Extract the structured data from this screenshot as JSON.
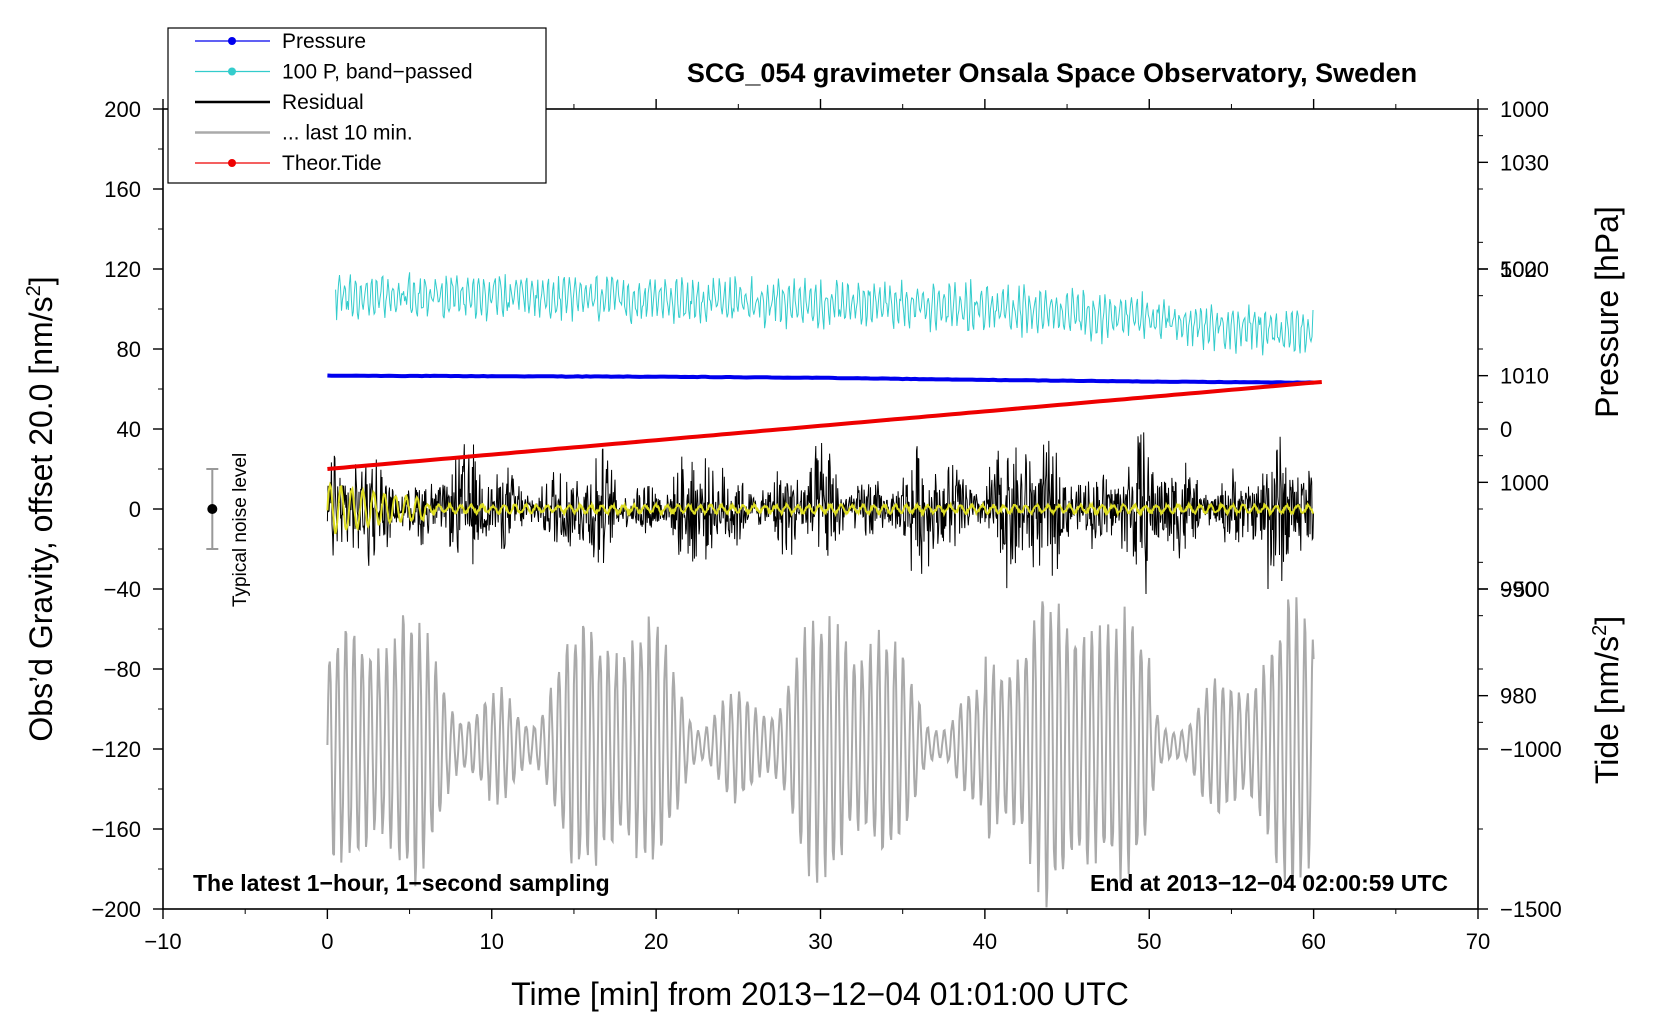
{
  "chart_data": {
    "type": "line",
    "title": "SCG_054 gravimeter Onsala Space Observatory, Sweden",
    "xlabel": "Time [min] from 2013−12−04 01:01:00 UTC",
    "ylabel_left": "Obs’d Gravity, offset 20.0 [nm/s",
    "ylabel_left_sup": "2",
    "ylabel_left_end": "]",
    "ylabel_right_top": "Pressure [hPa]",
    "ylabel_right_bottom": "Tide [nm/s",
    "ylabel_right_bottom_sup": "2",
    "ylabel_right_bottom_end": "]",
    "xlim": [
      -10,
      70
    ],
    "ylim": [
      -200,
      200
    ],
    "x_ticks": [
      -10,
      0,
      10,
      20,
      30,
      40,
      50,
      60,
      70
    ],
    "x_tick_labels": [
      "−10",
      "0",
      "10",
      "20",
      "30",
      "40",
      "50",
      "60",
      "70"
    ],
    "y_ticks": [
      200,
      160,
      120,
      80,
      40,
      0,
      -40,
      -80,
      -120,
      -160,
      -200
    ],
    "y_tick_labels": [
      "200",
      "160",
      "120",
      "80",
      "40",
      "0",
      "−40",
      "−80",
      "−120",
      "−160",
      "−200"
    ],
    "pressure_axis": {
      "range": [
        960,
        1035
      ],
      "ticks": [
        1030,
        1020,
        1010,
        1000,
        990,
        980
      ],
      "tick_labels": [
        "1030",
        "1020",
        "1010",
        "1000",
        "990",
        "980"
      ]
    },
    "tide_axis": {
      "range": [
        -1500,
        1000
      ],
      "ticks": [
        1000,
        500,
        0,
        -500,
        -1000,
        -1500
      ],
      "tick_labels": [
        "1000",
        "500",
        "0",
        "−500",
        "−1000",
        "−1500"
      ]
    },
    "annotations": {
      "bottom_left": "The latest 1−hour, 1−second sampling",
      "bottom_right": "End at 2013−12−04 02:00:59 UTC",
      "noise_label": "Typical noise level"
    },
    "noise_bar": {
      "x": -7,
      "center": 0,
      "low": -20,
      "high": 20
    },
    "legend": {
      "position": "top-left",
      "entries": [
        {
          "label": "Pressure",
          "color": "#0000ee",
          "marker": true
        },
        {
          "label": "100 P, band−passed",
          "color": "#33cccc",
          "marker": true
        },
        {
          "label": "Residual",
          "color": "#000000",
          "marker": false
        },
        {
          "label": "... last 10 min.",
          "color": "#aaaaaa",
          "marker": false
        },
        {
          "label": "Theor.Tide",
          "color": "#ee0000",
          "marker": true
        }
      ]
    },
    "series": [
      {
        "name": "Pressure",
        "color": "#0000ee",
        "axis": "pressure",
        "x": [
          0,
          10,
          20,
          30,
          40,
          50,
          60
        ],
        "values": [
          1010.0,
          1009.95,
          1009.9,
          1009.8,
          1009.6,
          1009.45,
          1009.35
        ]
      },
      {
        "name": "100 P, band−passed",
        "color": "#33cccc",
        "axis": "left",
        "x": [
          0,
          10,
          20,
          30,
          40,
          50,
          60
        ],
        "values": [
          107,
          106,
          105,
          103,
          101,
          95,
          88
        ]
      },
      {
        "name": "Residual",
        "color": "#000000",
        "axis": "left",
        "x": [
          0,
          10,
          20,
          30,
          40,
          50,
          60
        ],
        "values": [
          0,
          0,
          0,
          0,
          0,
          0,
          0
        ],
        "amplitude_max": 70
      },
      {
        "name": "... last 10 min.",
        "color": "#aaaaaa",
        "axis": "left",
        "x": [
          0,
          10,
          20,
          30,
          40,
          50,
          60
        ],
        "values": [
          -118,
          -118,
          -118,
          -118,
          -118,
          -118,
          -118
        ],
        "amplitude_max": 85
      },
      {
        "name": "Theor.Tide",
        "color": "#ee0000",
        "axis": "tide",
        "x": [
          0,
          60
        ],
        "values": [
          -125,
          145
        ]
      },
      {
        "name": "Filtered residual",
        "color": "#dddd22",
        "axis": "left",
        "x": [
          0,
          5,
          10,
          60
        ],
        "values": [
          0,
          0,
          0,
          0
        ]
      }
    ],
    "colors": {
      "pressure": "#0000ee",
      "bandpass": "#33cccc",
      "residual": "#000000",
      "last10": "#aaaaaa",
      "tide": "#ee0000",
      "filtered": "#dddd22"
    }
  }
}
